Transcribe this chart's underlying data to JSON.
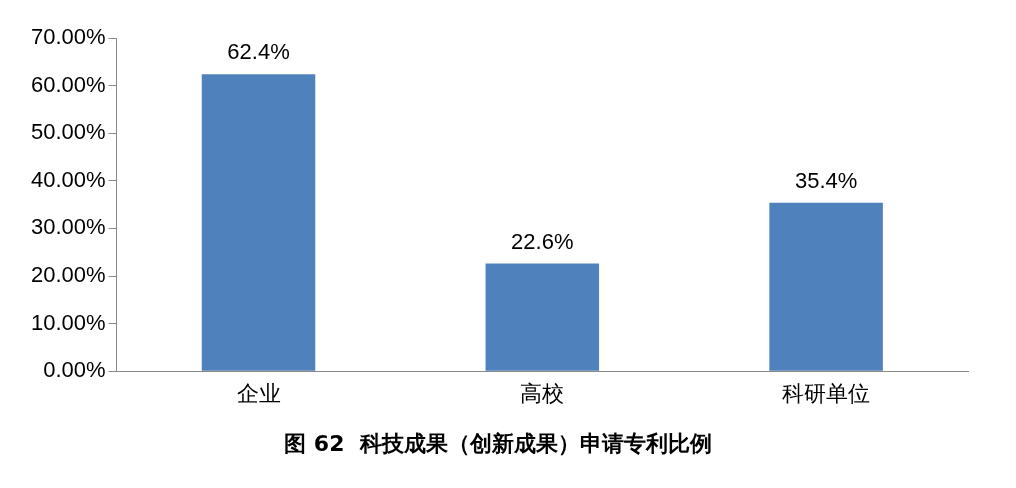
{
  "chart_data": {
    "type": "bar",
    "title": "图 62  科技成果（创新成果）申请专利比例",
    "categories": [
      "企业",
      "高校",
      "科研单位"
    ],
    "values": [
      62.4,
      22.6,
      35.4
    ],
    "value_labels": [
      "62.4%",
      "22.6%",
      "35.4%"
    ],
    "color": "#4f81bd",
    "ylim": [
      0,
      70
    ],
    "yticks": [
      {
        "value": 0,
        "label": "0.00%"
      },
      {
        "value": 10,
        "label": "10.00%"
      },
      {
        "value": 20,
        "label": "20.00%"
      },
      {
        "value": 30,
        "label": "30.00%"
      },
      {
        "value": 40,
        "label": "40.00%"
      },
      {
        "value": 50,
        "label": "50.00%"
      },
      {
        "value": 60,
        "label": "60.00%"
      },
      {
        "value": 70,
        "label": "70.00%"
      }
    ],
    "grid": false,
    "legend": false
  }
}
